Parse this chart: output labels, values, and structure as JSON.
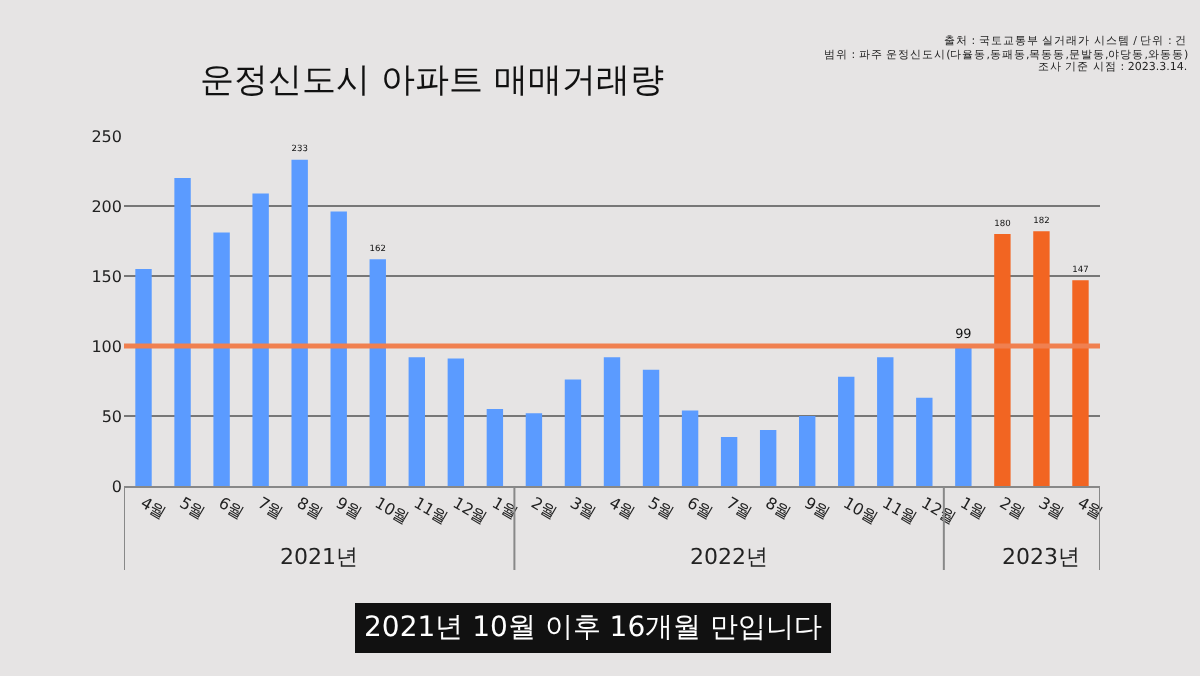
{
  "chart_data": {
    "type": "bar",
    "title": "운정신도시 아파트 매매거래량",
    "categories": [
      "4월",
      "5월",
      "6월",
      "7월",
      "8월",
      "9월",
      "10월",
      "11월",
      "12월",
      "1월",
      "2월",
      "3월",
      "4월",
      "5월",
      "6월",
      "7월",
      "8월",
      "9월",
      "10월",
      "11월",
      "12월",
      "1월",
      "2월",
      "3월",
      "4월"
    ],
    "values": [
      155,
      220,
      181,
      209,
      233,
      196,
      162,
      92,
      91,
      55,
      52,
      76,
      92,
      83,
      54,
      35,
      40,
      50,
      78,
      92,
      63,
      99,
      180,
      182,
      147
    ],
    "colors": [
      "#5b9bff",
      "#5b9bff",
      "#5b9bff",
      "#5b9bff",
      "#5b9bff",
      "#5b9bff",
      "#5b9bff",
      "#5b9bff",
      "#5b9bff",
      "#5b9bff",
      "#5b9bff",
      "#5b9bff",
      "#5b9bff",
      "#5b9bff",
      "#5b9bff",
      "#5b9bff",
      "#5b9bff",
      "#5b9bff",
      "#5b9bff",
      "#5b9bff",
      "#5b9bff",
      "#5b9bff",
      "#f26522",
      "#f26522",
      "#f26522"
    ],
    "value_labels": [
      null,
      null,
      null,
      null,
      "233",
      null,
      "162",
      null,
      null,
      null,
      null,
      null,
      null,
      null,
      null,
      null,
      null,
      null,
      null,
      null,
      null,
      "99",
      "180",
      "182",
      "147"
    ],
    "ylim": [
      0,
      250
    ],
    "yticks": [
      0,
      50,
      100,
      150,
      200,
      250
    ],
    "grid": "y",
    "ref_lines": [
      {
        "axis": "y",
        "value": 100,
        "color": "#f08050"
      }
    ],
    "annotations": [
      "2021년",
      "2022년",
      "2023년",
      "출처 : 국토교통부 실거래가 시스템 / 단위 : 건",
      "범위 : 파주 운정신도시(다율동,동패동,목동동,문발동,야당동,와동동)",
      "조사 기준 시점 : 2023.3.14.",
      "2021년 10월 이후 16개월 만입니다"
    ]
  }
}
